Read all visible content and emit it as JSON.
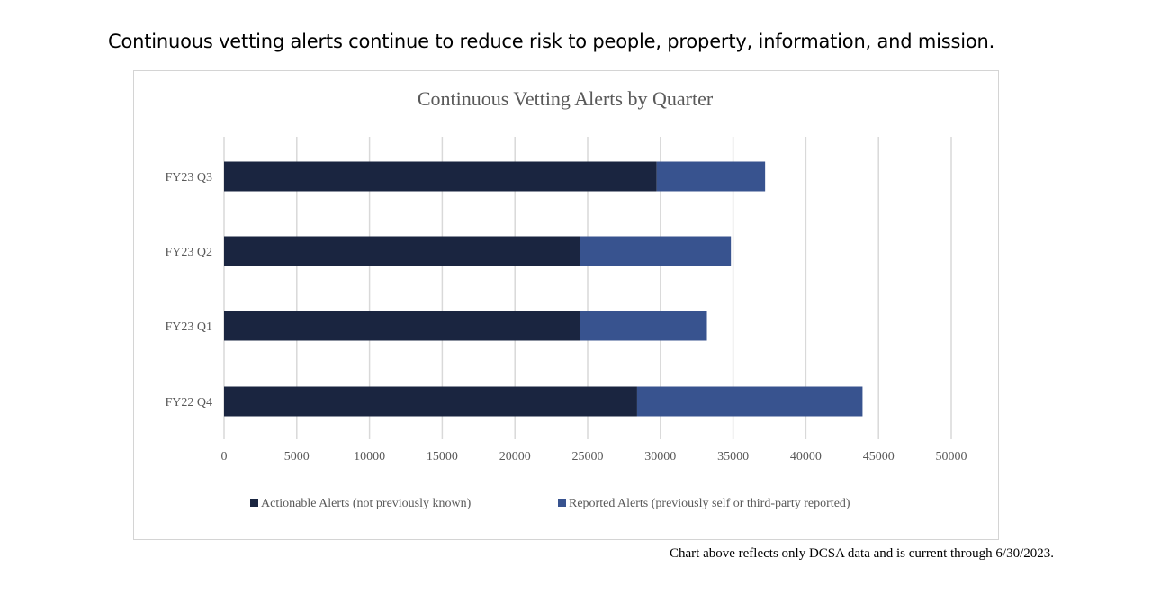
{
  "headline": "Continuous vetting alerts continue to reduce risk to people, property, information, and mission.",
  "footnote": "Chart above reflects only DCSA data and is current through 6/30/2023.",
  "colors": {
    "actionable": "#1a2540",
    "reported": "#38538f",
    "grid": "#d9d9d9",
    "text": "#595959"
  },
  "chart_data": {
    "type": "bar",
    "orientation": "horizontal",
    "stacked": true,
    "title": "Continuous Vetting Alerts by Quarter",
    "categories": [
      "FY23 Q3",
      "FY23 Q2",
      "FY23 Q1",
      "FY22 Q4"
    ],
    "series": [
      {
        "name": "Actionable Alerts (not previously known)",
        "values": [
          29750,
          24500,
          24500,
          28400
        ]
      },
      {
        "name": "Reported Alerts (previously self or third-party reported)",
        "values": [
          7450,
          10350,
          8700,
          15500
        ]
      }
    ],
    "xlim": [
      0,
      50000
    ],
    "xticks": [
      "0",
      "5000",
      "10000",
      "15000",
      "20000",
      "25000",
      "30000",
      "35000",
      "40000",
      "45000",
      "50000"
    ],
    "grid": true,
    "legend": "bottom"
  }
}
